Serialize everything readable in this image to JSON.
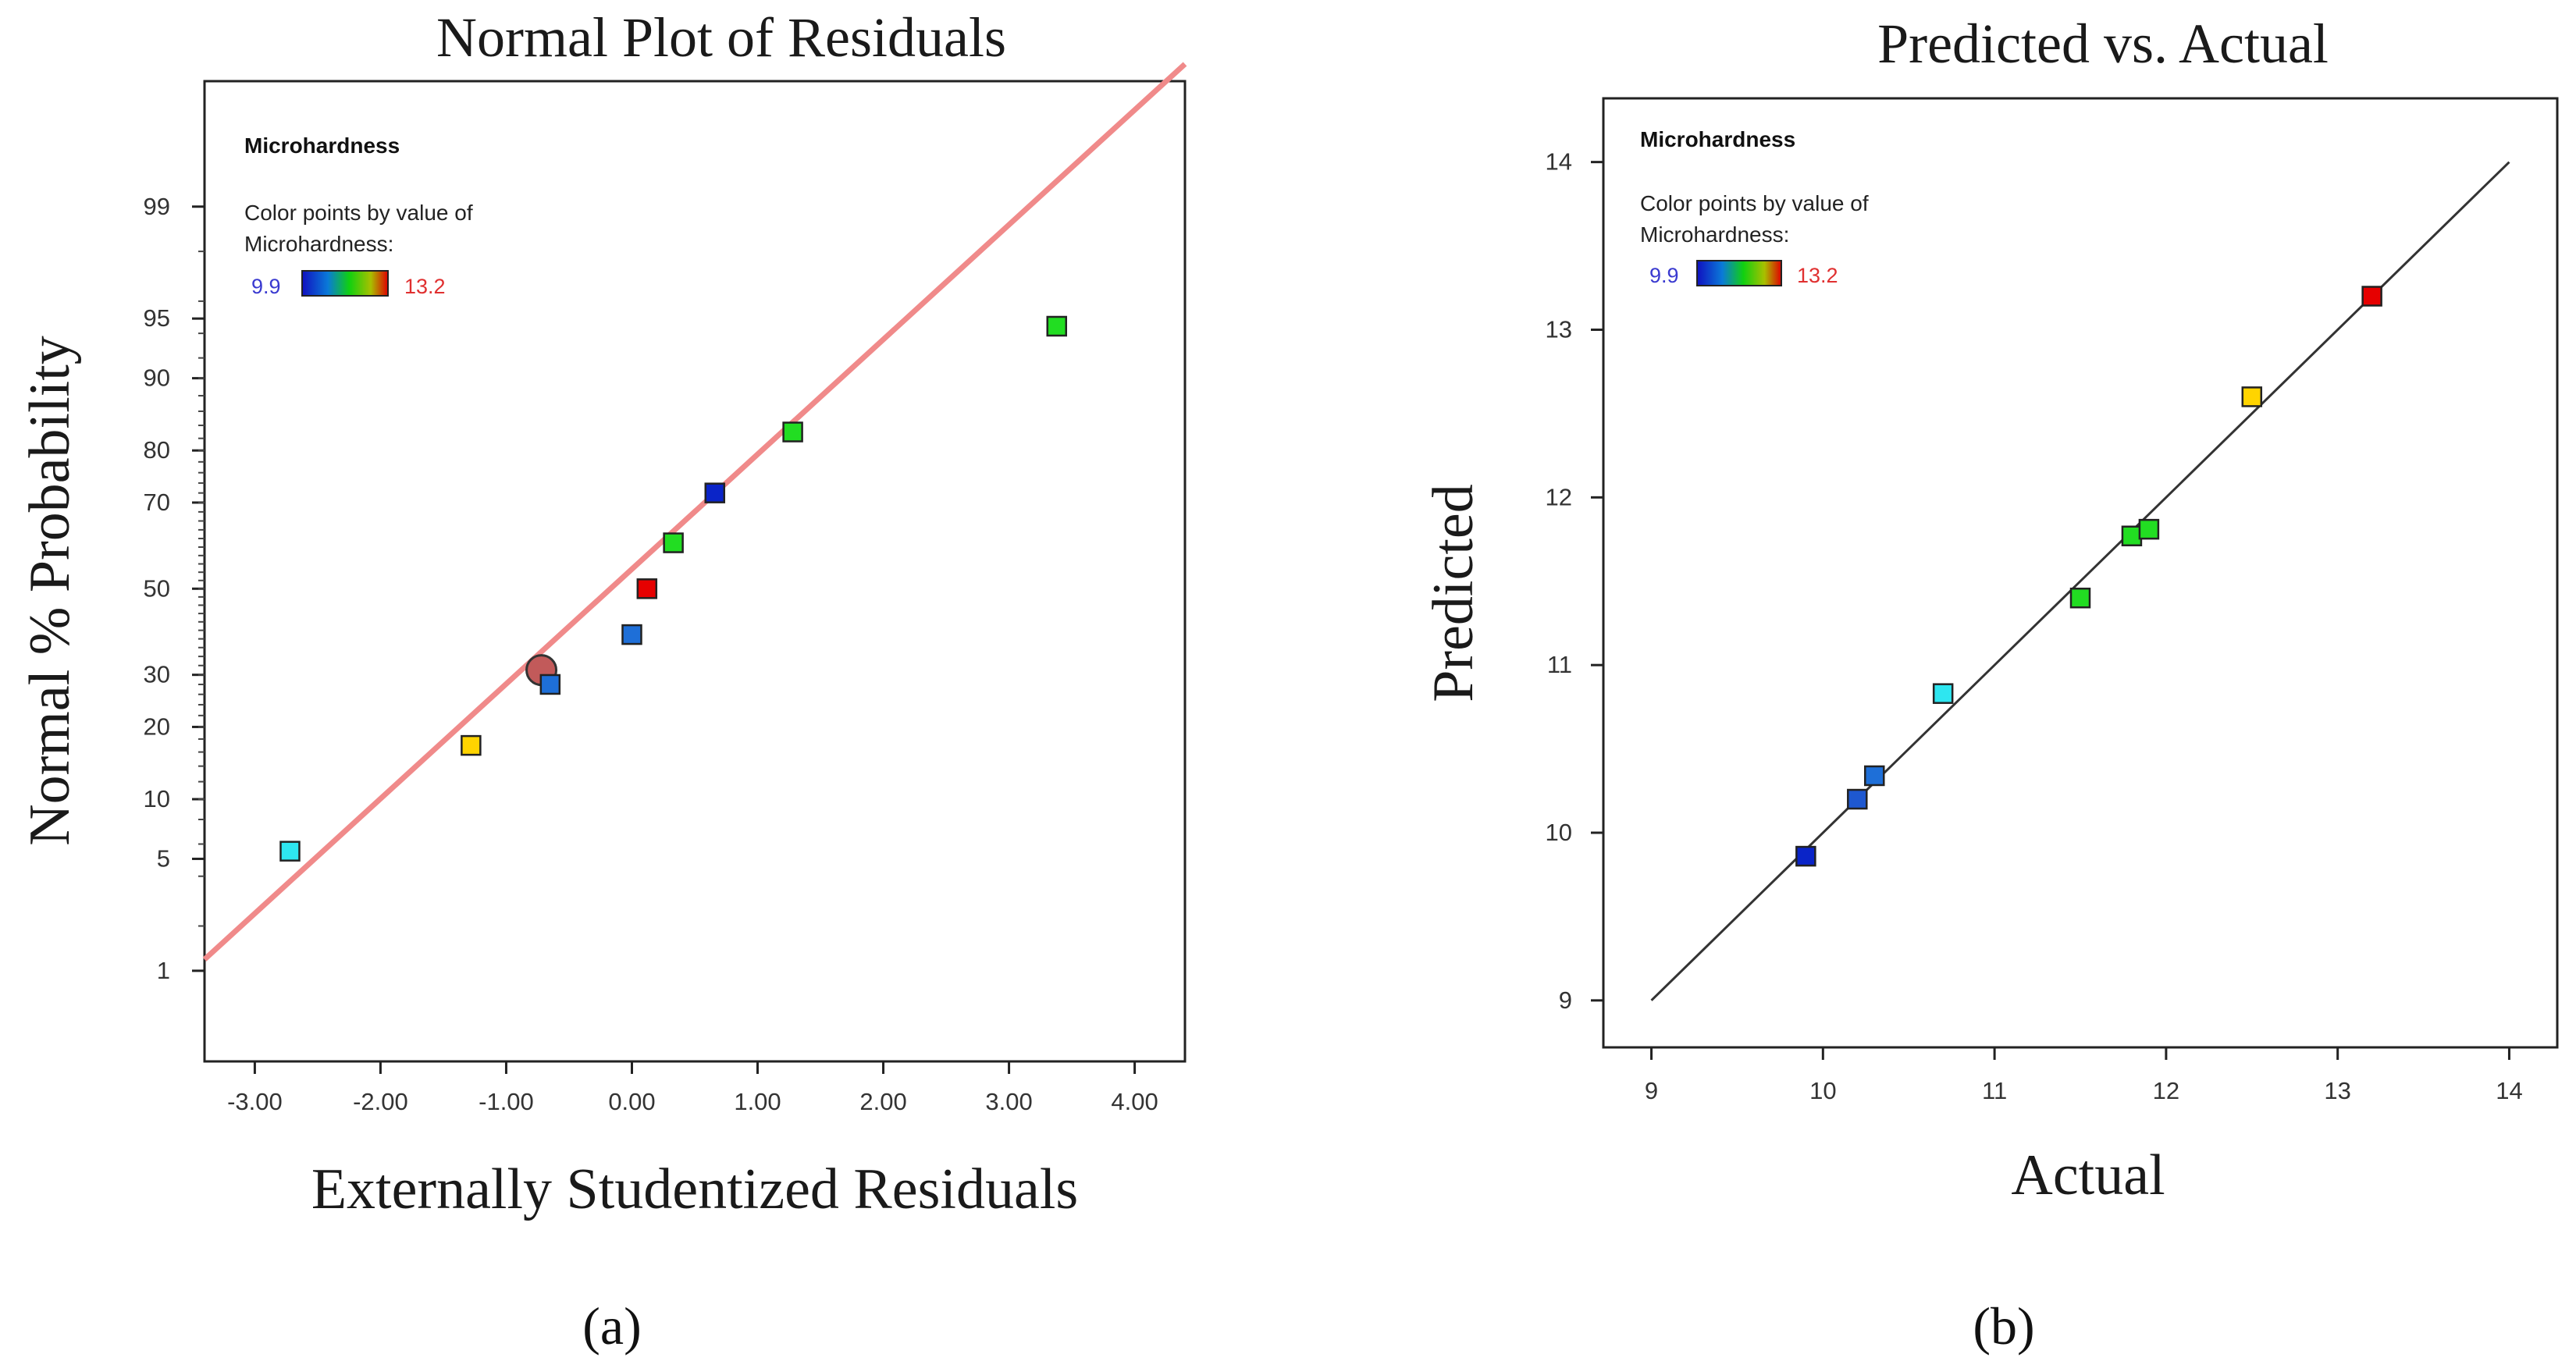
{
  "chart_data": [
    {
      "type": "scatter",
      "panel_label": "(a)",
      "title": "Normal Plot of Residuals",
      "xlabel": "Externally Studentized Residuals",
      "ylabel": "Normal % Probability",
      "xlim": [
        -3.4,
        4.4
      ],
      "ylim": [
        0.2,
        99.9
      ],
      "x_ticks": [
        "-3.00",
        "-2.00",
        "-1.00",
        "0.00",
        "1.00",
        "2.00",
        "3.00",
        "4.00"
      ],
      "x_tick_values": [
        -3,
        -2,
        -1,
        0,
        1,
        2,
        3,
        4
      ],
      "y_ticks": [
        "1",
        "5",
        "10",
        "20",
        "30",
        "50",
        "70",
        "80",
        "90",
        "95",
        "99"
      ],
      "y_tick_values": [
        1,
        5,
        10,
        20,
        30,
        50,
        70,
        80,
        90,
        95,
        99
      ],
      "legend": {
        "title": "Microhardness",
        "subtitle": "Color points by value of Microhardness:",
        "min_label": "9.9",
        "max_label": "13.2"
      },
      "reference_line": {
        "x": [
          -3.4,
          4.4
        ],
        "y": [
          1.2,
          99.93
        ],
        "color": "#f08a8a"
      },
      "highlight": {
        "x": -0.72,
        "y": 31,
        "color": "#c25a5a"
      },
      "points": [
        {
          "x": -2.72,
          "y": 5.5,
          "color": "#2ee6f0"
        },
        {
          "x": -1.28,
          "y": 17,
          "color": "#ffd400"
        },
        {
          "x": -0.65,
          "y": 28,
          "color": "#1e6fd8"
        },
        {
          "x": 0.0,
          "y": 39,
          "color": "#1e6fd8"
        },
        {
          "x": 0.12,
          "y": 50,
          "color": "#e60000"
        },
        {
          "x": 0.33,
          "y": 61,
          "color": "#22dd22"
        },
        {
          "x": 0.66,
          "y": 72,
          "color": "#0a24c8"
        },
        {
          "x": 1.28,
          "y": 83,
          "color": "#22dd22"
        },
        {
          "x": 3.38,
          "y": 94.5,
          "color": "#22dd22"
        }
      ]
    },
    {
      "type": "scatter",
      "panel_label": "(b)",
      "title": "Predicted vs. Actual",
      "xlabel": "Actual",
      "ylabel": "Predicted",
      "xlim": [
        8.72,
        14.28
      ],
      "ylim": [
        8.72,
        14.38
      ],
      "x_ticks": [
        "9",
        "10",
        "11",
        "12",
        "13",
        "14"
      ],
      "y_ticks": [
        "9",
        "10",
        "11",
        "12",
        "13",
        "14"
      ],
      "legend": {
        "title": "Microhardness",
        "subtitle": "Color points by value of Microhardness:",
        "min_label": "9.9",
        "max_label": "13.2"
      },
      "reference_line": {
        "x": [
          9,
          14
        ],
        "y": [
          9,
          14
        ],
        "color": "#333333"
      },
      "points": [
        {
          "x": 9.9,
          "y": 9.86,
          "color": "#0a24c8"
        },
        {
          "x": 10.2,
          "y": 10.2,
          "color": "#1e58d0"
        },
        {
          "x": 10.3,
          "y": 10.34,
          "color": "#1e6fd8"
        },
        {
          "x": 10.7,
          "y": 10.83,
          "color": "#2ee6f0"
        },
        {
          "x": 11.5,
          "y": 11.4,
          "color": "#22dd22"
        },
        {
          "x": 11.8,
          "y": 11.77,
          "color": "#22dd22"
        },
        {
          "x": 11.9,
          "y": 11.81,
          "color": "#22dd22"
        },
        {
          "x": 12.5,
          "y": 12.6,
          "color": "#ffd400"
        },
        {
          "x": 13.2,
          "y": 13.2,
          "color": "#e60000"
        }
      ]
    }
  ]
}
